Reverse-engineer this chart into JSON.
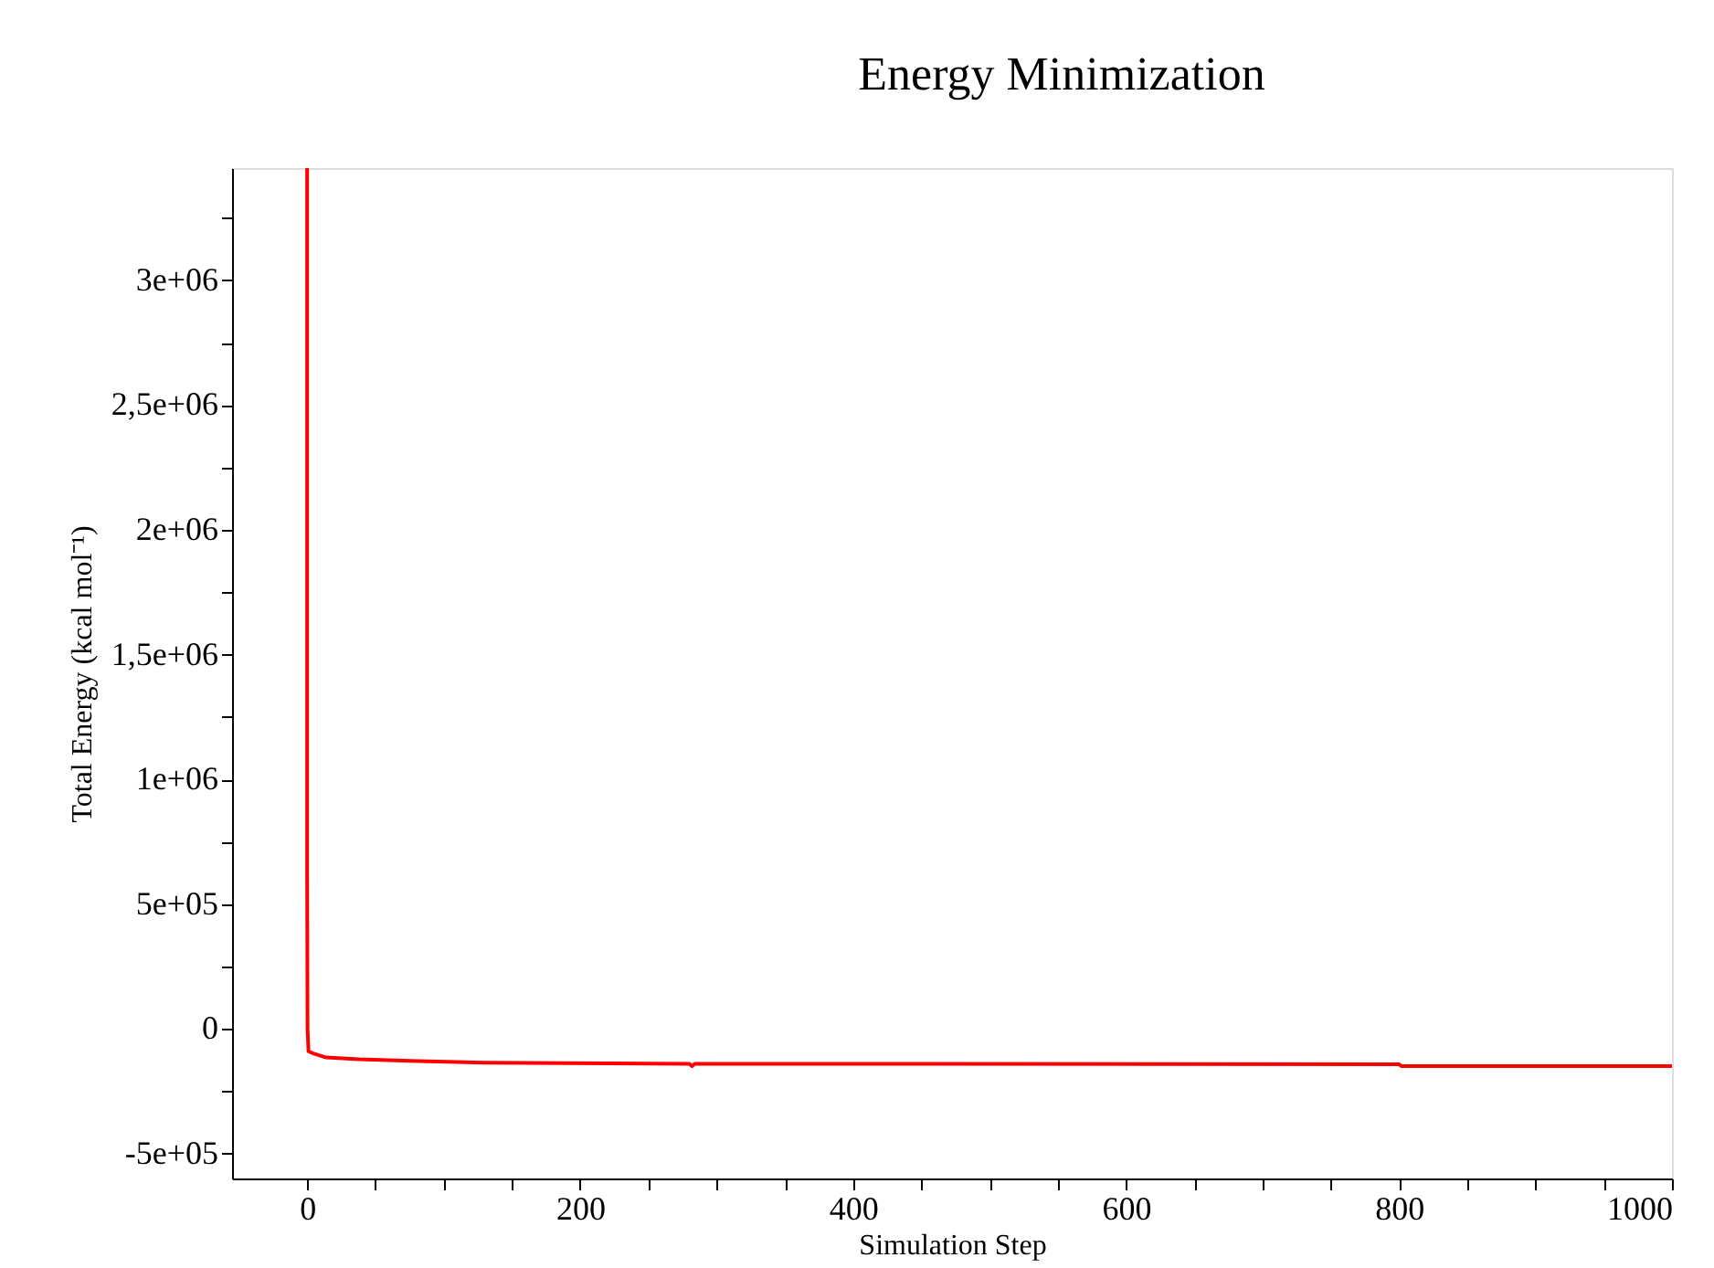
{
  "chart_data": {
    "type": "line",
    "title": "Energy Minimization",
    "xlabel": "Simulation Step",
    "ylabel": "Total Energy (kcal mol⁻¹)",
    "x": [
      0,
      0,
      0.3,
      1,
      5,
      14,
      38,
      81,
      130,
      280,
      282,
      284,
      800,
      802,
      1000
    ],
    "series": [
      {
        "color": "#ff0000",
        "values": [
          3450000,
          610000,
          0,
          -90000,
          -100000,
          -115000,
          -122000,
          -129000,
          -136000,
          -140000,
          -150000,
          -140000,
          -142000,
          -150000,
          -150000
        ]
      }
    ],
    "xlim": [
      -55,
      1000
    ],
    "ylim": [
      -600000,
      3450000
    ],
    "xticks": [
      0,
      {
        "value": 50,
        "label": null
      },
      {
        "value": 100,
        "label": null
      },
      {
        "value": 150,
        "label": null
      },
      200,
      {
        "value": 250,
        "label": null
      },
      {
        "value": 300,
        "label": null
      },
      {
        "value": 350,
        "label": null
      },
      400,
      {
        "value": 450,
        "label": null
      },
      {
        "value": 500,
        "label": null
      },
      {
        "value": 550,
        "label": null
      },
      600,
      {
        "value": 650,
        "label": null
      },
      {
        "value": 700,
        "label": null
      },
      {
        "value": 750,
        "label": null
      },
      800,
      {
        "value": 850,
        "label": null
      },
      {
        "value": 900,
        "label": null
      },
      {
        "value": 950,
        "label": null
      },
      1000
    ],
    "yticks": [
      {
        "value": -500000,
        "label": "-5e+05"
      },
      {
        "value": -250000,
        "label": null
      },
      0,
      {
        "value": 250000,
        "label": null
      },
      {
        "value": 500000,
        "label": "5e+05"
      },
      {
        "value": 750000,
        "label": null
      },
      {
        "value": 1000000,
        "label": "1e+06"
      },
      {
        "value": 1250000,
        "label": null
      },
      {
        "value": 1500000,
        "label": "1,5e+06"
      },
      {
        "value": 1750000,
        "label": null
      },
      {
        "value": 2000000,
        "label": "2e+06"
      },
      {
        "value": 2250000,
        "label": null
      },
      {
        "value": 2500000,
        "label": "2,5e+06"
      },
      {
        "value": 2750000,
        "label": null
      },
      {
        "value": 3000000,
        "label": "3e+06"
      },
      {
        "value": 3250000,
        "label": null
      }
    ],
    "grid": false,
    "marker": "none",
    "line_style": "solid"
  }
}
